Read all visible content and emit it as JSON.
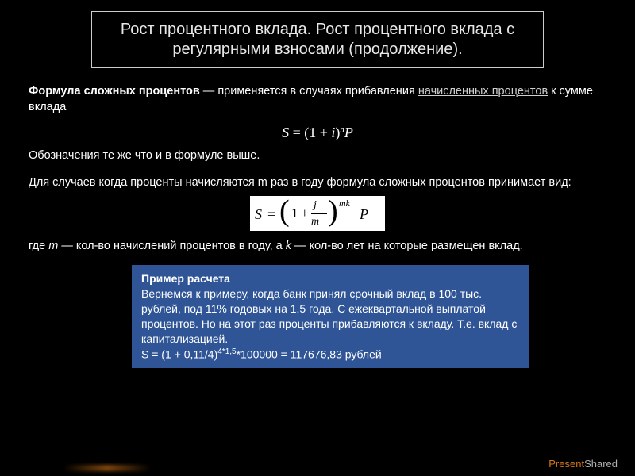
{
  "title": "Рост процентного вклада. Рост процентного вклада с регулярными взносами (продолжение).",
  "intro": {
    "bold": "Формула сложных процентов",
    "text1": " — применяется в случаях прибавления ",
    "link": "начисленных процентов",
    "text2": " к сумме вклада"
  },
  "formula1": {
    "S": "S",
    "eq": " = (1 + ",
    "i": "i",
    "paren": ")",
    "n": "n",
    "P": "P"
  },
  "note1": "Обозначения те же что и в формуле выше.",
  "note2": "Для случаев когда проценты начисляются m раз в году формула сложных процентов принимает вид:",
  "formula2": {
    "S": "S",
    "eq": "=",
    "one": "1",
    "plus": "+",
    "j": "j",
    "m": "m",
    "mk": "mk",
    "P": "P"
  },
  "note3": {
    "t1": "где ",
    "m": "m",
    "t2": " — кол-во начислений процентов в году, а ",
    "k": "k",
    "t3": " — кол-во лет на которые размещен вклад."
  },
  "example": {
    "header": "Пример расчета",
    "body": "Вернемся к примеру, когда банк принял срочный вклад в 100 тыс. рублей, под 11% годовых на 1,5 года. С ежеквартальной выплатой процентов. Но на этот раз проценты прибавляются к вкладу. Т.е. вклад с капитализацией.",
    "calc_a": "S = (1 + 0,11/4)",
    "calc_exp": "4*1,5",
    "calc_b": "*100000 = 117676,83 рублей"
  },
  "watermark": {
    "a": "Present",
    "b": "Shared"
  },
  "colors": {
    "bg": "#000000",
    "box": "#2f5597",
    "text": "#ffffff",
    "accent": "#ff8c1a"
  }
}
